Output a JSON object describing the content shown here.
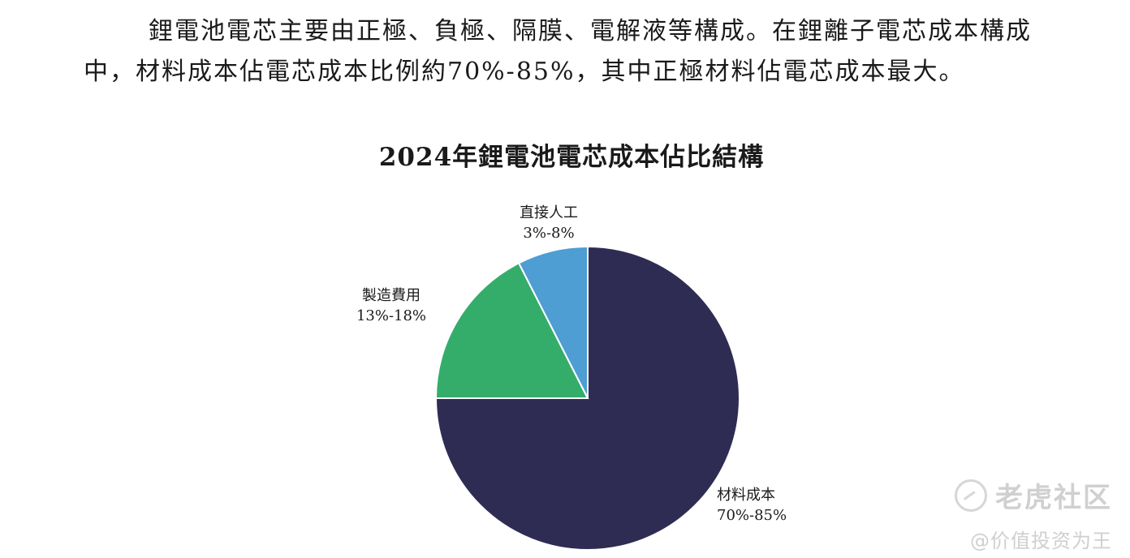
{
  "paragraph": {
    "line1": "鋰電池電芯主要由正極、負極、隔膜、電解液等構成。在鋰離子電芯成本構成",
    "line2": "中，材料成本佔電芯成本比例約70%-85%，其中正極材料佔電芯成本最大。"
  },
  "chart_data": {
    "type": "pie",
    "title": "2024年鋰電池電芯成本佔比結構",
    "slices": [
      {
        "label": "材料成本",
        "range": "70%-85%",
        "value": 75,
        "color": "#2e2c53"
      },
      {
        "label": "製造費用",
        "range": "13%-18%",
        "value": 17.5,
        "color": "#34ad6b"
      },
      {
        "label": "直接人工",
        "range": "3%-8%",
        "value": 7.5,
        "color": "#4e9dd3"
      }
    ],
    "start": "12 o'clock",
    "direction": "clockwise",
    "legend": "none"
  },
  "watermark": {
    "name": "老虎社区",
    "sub": "@价值投资为王"
  }
}
